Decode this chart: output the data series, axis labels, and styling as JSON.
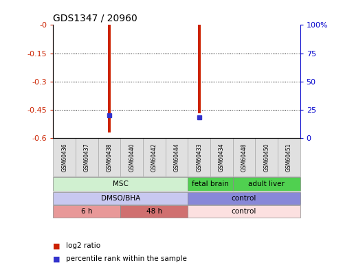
{
  "title": "GDS1347 / 20960",
  "samples": [
    "GSM60436",
    "GSM60437",
    "GSM60438",
    "GSM60440",
    "GSM60442",
    "GSM60444",
    "GSM60433",
    "GSM60434",
    "GSM60448",
    "GSM60450",
    "GSM60451"
  ],
  "log2_ratio": [
    0,
    0,
    -0.57,
    0,
    0,
    0,
    -0.47,
    0,
    0,
    0,
    0
  ],
  "percentile_rank": [
    null,
    null,
    20,
    null,
    null,
    null,
    18,
    null,
    null,
    null,
    null
  ],
  "ylim_left": [
    -0.6,
    0
  ],
  "ylim_right": [
    0,
    100
  ],
  "yticks_left": [
    0,
    -0.15,
    -0.3,
    -0.45,
    -0.6
  ],
  "yticks_right": [
    0,
    25,
    50,
    75,
    100
  ],
  "cell_type_groups": [
    {
      "label": "MSC",
      "start": 0,
      "end": 6,
      "color": "#d0f0d0"
    },
    {
      "label": "fetal brain",
      "start": 6,
      "end": 8,
      "color": "#50d050"
    },
    {
      "label": "adult liver",
      "start": 8,
      "end": 11,
      "color": "#50d050"
    }
  ],
  "agent_groups": [
    {
      "label": "DMSO/BHA",
      "start": 0,
      "end": 6,
      "color": "#c8c8f0"
    },
    {
      "label": "control",
      "start": 6,
      "end": 11,
      "color": "#8888d8"
    }
  ],
  "time_groups": [
    {
      "label": "6 h",
      "start": 0,
      "end": 3,
      "color": "#e89898"
    },
    {
      "label": "48 h",
      "start": 3,
      "end": 6,
      "color": "#d07070"
    },
    {
      "label": "control",
      "start": 6,
      "end": 11,
      "color": "#fce0e0"
    }
  ],
  "bar_color": "#cc2200",
  "percentile_color": "#3333cc",
  "left_axis_color": "#cc2200",
  "right_axis_color": "#0000cc",
  "grid_color": "#888888",
  "bar_width": 0.12,
  "sample_box_color": "#e0e0e0",
  "sample_box_edge": "#aaaaaa"
}
